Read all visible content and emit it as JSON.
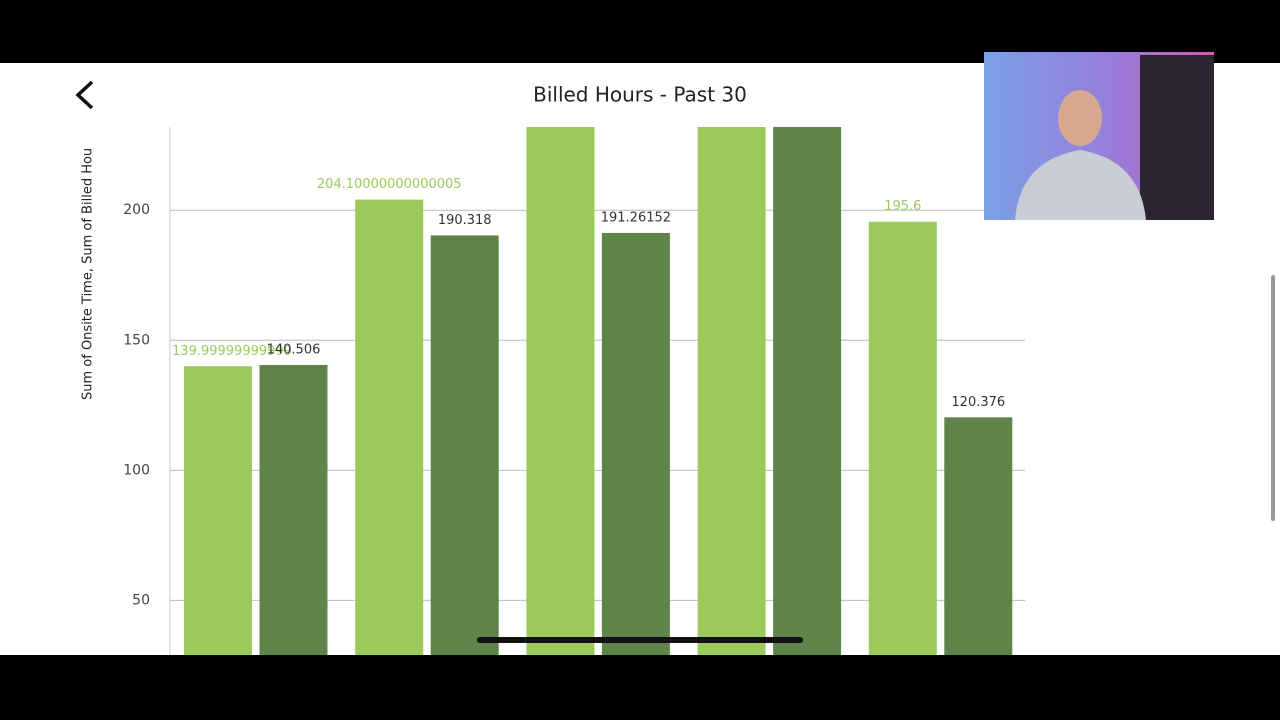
{
  "header": {
    "title": "Billed Hours - Past 30"
  },
  "chart_data": {
    "type": "bar",
    "y_label": "Sum of Onsite Time, Sum of Billed Hou",
    "categories": [
      null,
      null,
      null,
      null,
      null
    ],
    "series": [
      {
        "color": "#9bca5a",
        "label_color": "#9bca5a",
        "values": [
          140,
          204.1,
          245,
          245,
          195.6
        ],
        "value_labels": [
          "139.99999999999",
          "204.10000000000005",
          null,
          null,
          "195.6"
        ]
      },
      {
        "color": "#5e8449",
        "label_color": "#333333",
        "values": [
          140.506,
          190.318,
          191.26152,
          245,
          120.376
        ],
        "value_labels": [
          "140.506",
          "190.318",
          "191.26152",
          null,
          "120.376"
        ]
      }
    ],
    "ylim": [
      29,
      232
    ],
    "yticks": [
      50,
      100,
      150,
      200
    ],
    "grid": true
  }
}
